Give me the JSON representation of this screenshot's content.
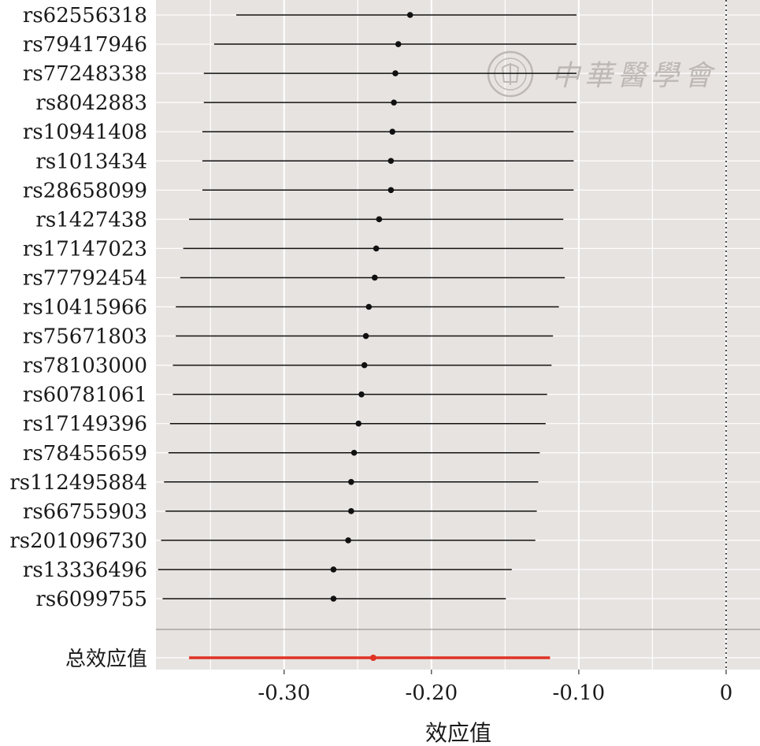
{
  "chart_data": {
    "type": "forest",
    "xlabel": "效应值",
    "x_ticks": [
      -0.3,
      -0.2,
      -0.1,
      0
    ],
    "x_tick_labels": [
      "-0.30",
      "-0.20",
      "-0.10",
      "0"
    ],
    "xlim": [
      -0.387,
      0.023
    ],
    "reference_line": 0,
    "grid": true,
    "colors": {
      "panel": "#e7e3e1",
      "grid": "#ffffff",
      "point": "#111111",
      "summary": "#e03325"
    },
    "rows": [
      {
        "label": "rs62556318",
        "estimate": -0.2145,
        "lower": -0.3325,
        "upper": -0.1015
      },
      {
        "label": "rs79417946",
        "estimate": -0.2225,
        "lower": -0.3475,
        "upper": -0.1015
      },
      {
        "label": "rs77248338",
        "estimate": -0.2245,
        "lower": -0.3545,
        "upper": -0.1015
      },
      {
        "label": "rs8042883",
        "estimate": -0.2255,
        "lower": -0.3545,
        "upper": -0.1015
      },
      {
        "label": "rs10941408",
        "estimate": -0.2265,
        "lower": -0.3555,
        "upper": -0.1035
      },
      {
        "label": "rs1013434",
        "estimate": -0.2275,
        "lower": -0.3555,
        "upper": -0.1035
      },
      {
        "label": "rs28658099",
        "estimate": -0.2275,
        "lower": -0.3555,
        "upper": -0.1035
      },
      {
        "label": "rs1427438",
        "estimate": -0.2355,
        "lower": -0.3645,
        "upper": -0.1105
      },
      {
        "label": "rs17147023",
        "estimate": -0.2375,
        "lower": -0.3685,
        "upper": -0.1105
      },
      {
        "label": "rs77792454",
        "estimate": -0.2385,
        "lower": -0.3705,
        "upper": -0.1095
      },
      {
        "label": "rs10415966",
        "estimate": -0.2425,
        "lower": -0.3735,
        "upper": -0.1135
      },
      {
        "label": "rs75671803",
        "estimate": -0.2445,
        "lower": -0.3735,
        "upper": -0.1175
      },
      {
        "label": "rs78103000",
        "estimate": -0.2455,
        "lower": -0.3755,
        "upper": -0.1185
      },
      {
        "label": "rs60781061",
        "estimate": -0.2475,
        "lower": -0.3755,
        "upper": -0.1215
      },
      {
        "label": "rs17149396",
        "estimate": -0.2495,
        "lower": -0.3775,
        "upper": -0.1225
      },
      {
        "label": "rs78455659",
        "estimate": -0.2525,
        "lower": -0.3785,
        "upper": -0.1265
      },
      {
        "label": "rs112495884",
        "estimate": -0.2545,
        "lower": -0.3815,
        "upper": -0.1275
      },
      {
        "label": "rs66755903",
        "estimate": -0.2545,
        "lower": -0.3805,
        "upper": -0.1285
      },
      {
        "label": "rs201096730",
        "estimate": -0.2565,
        "lower": -0.3835,
        "upper": -0.1295
      },
      {
        "label": "rs13336496",
        "estimate": -0.2665,
        "lower": -0.3855,
        "upper": -0.1455
      },
      {
        "label": "rs6099755",
        "estimate": -0.2665,
        "lower": -0.3825,
        "upper": -0.1495
      }
    ],
    "summary": {
      "label": "总效应值",
      "estimate": -0.2395,
      "lower": -0.3645,
      "upper": -0.1195
    }
  },
  "watermark": {
    "text": "中華醫學會",
    "icon": "seal-icon"
  }
}
